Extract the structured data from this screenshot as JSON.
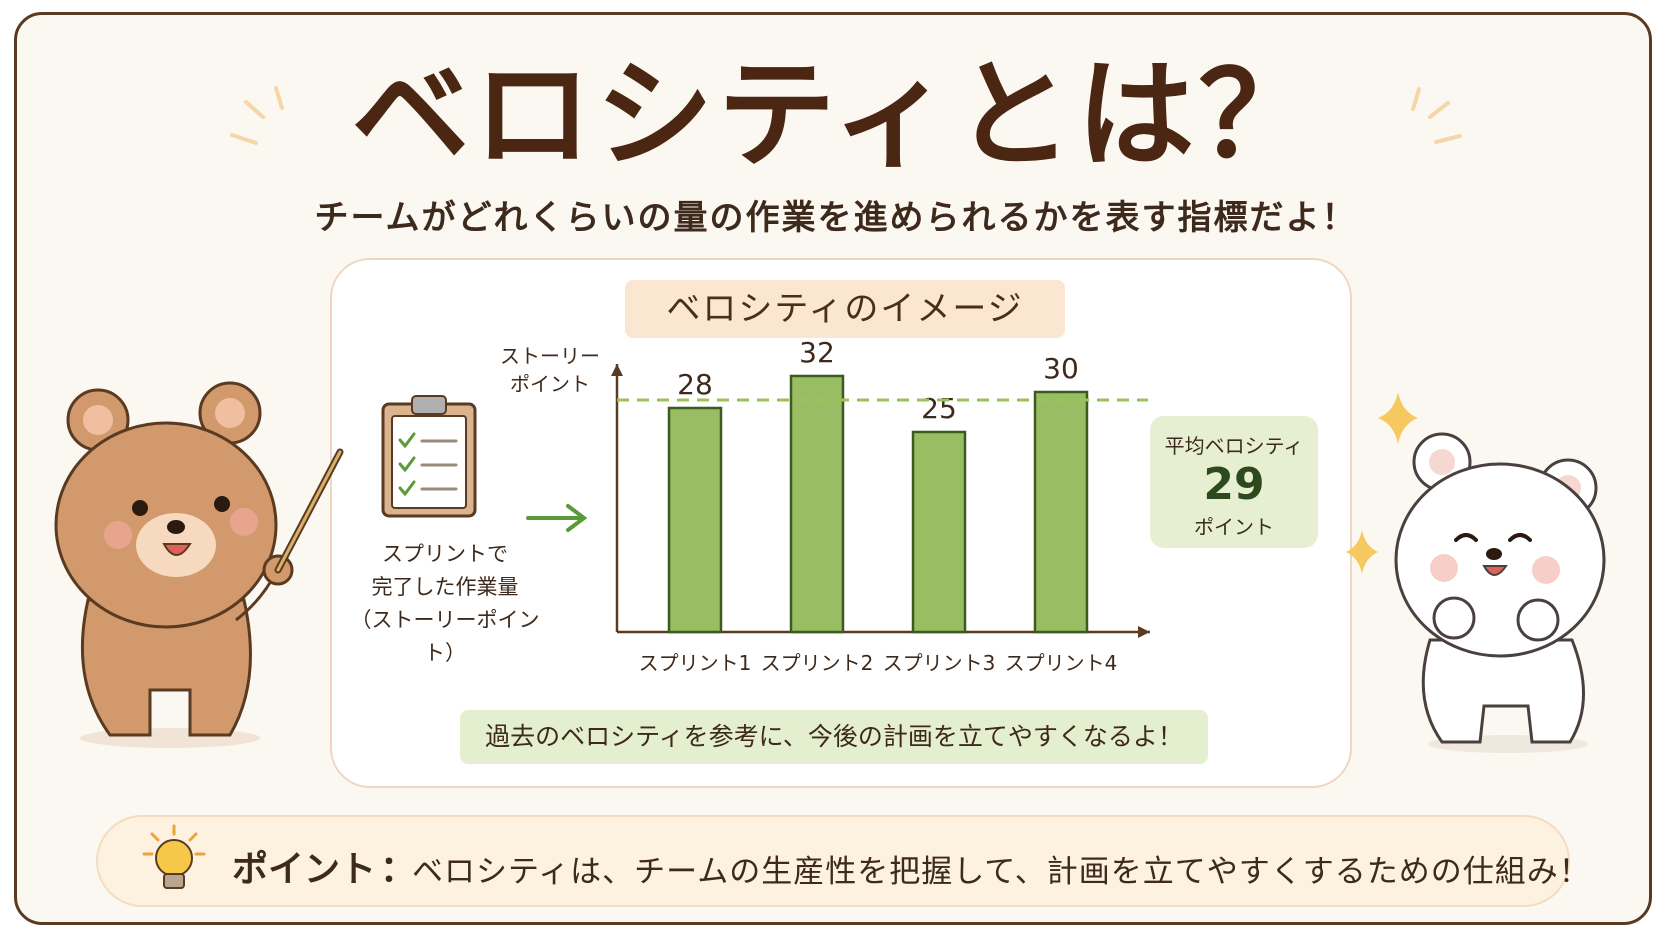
{
  "header": {
    "title": "ベロシティとは？",
    "subtitle": "チームがどれくらいの量の作業を進められるかを表す指標だよ！"
  },
  "panel": {
    "title": "ベロシティのイメージ",
    "side_note_line1": "スプリントで",
    "side_note_line2": "完了した作業量",
    "side_note_line3": "（ストーリーポイント）",
    "average": {
      "label": "平均ベロシティ",
      "value": "29",
      "unit": "ポイント"
    },
    "footer_note": "過去のベロシティを参考に、今後の計画を立てやすくなるよ！"
  },
  "point": {
    "label": "ポイント",
    "colon": "：",
    "text": "ベロシティは、チームの生産性を把握して、計画を立てやすくするための仕組み！"
  },
  "chart_data": {
    "type": "bar",
    "ylabel": "ストーリー\nポイント",
    "categories": [
      "スプリント1",
      "スプリント2",
      "スプリント3",
      "スプリント4"
    ],
    "values": [
      28,
      32,
      25,
      30
    ],
    "reference_line": {
      "value": 29
    },
    "ylim": [
      0,
      40
    ],
    "grid": false,
    "colors": {
      "bar": "#99bd62",
      "bar_edge": "#3d5a20",
      "avg_line": "#9cc25a",
      "axis": "#5a3a20"
    }
  },
  "colors": {
    "title": "#4a2613",
    "panel_title_bg": "#fbe6d2",
    "note_bg": "#e3efcf",
    "point_bg": "#fdf1e0"
  },
  "icons": [
    "clipboard-icon",
    "arrow-right-icon",
    "lightbulb-icon",
    "sparkle-icon"
  ]
}
